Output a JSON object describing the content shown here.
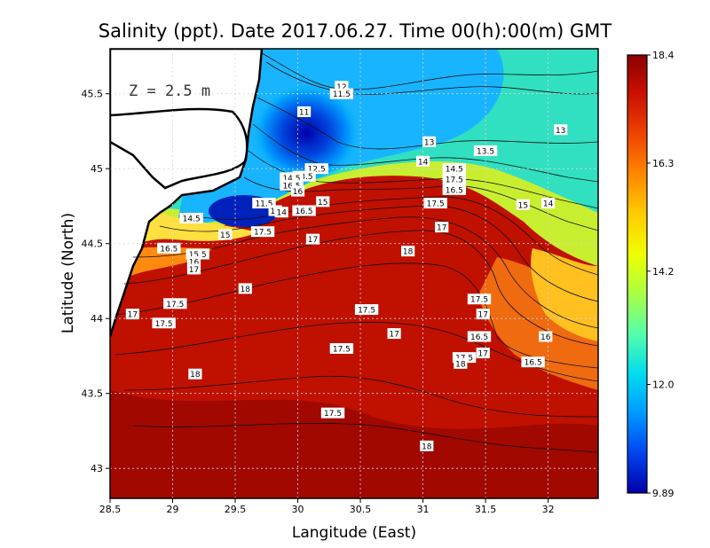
{
  "chart_data": {
    "type": "heatmap",
    "title": "Salinity (ppt). Date 2017.06.27. Time 00(h):00(m) GMT",
    "xlabel": "Langitude (East)",
    "ylabel": "Latitude (North)",
    "depth_label": "Z = 2.5 m",
    "xlim": [
      28.5,
      32.4
    ],
    "ylim": [
      42.8,
      45.8
    ],
    "x_ticks": [
      "28.5",
      "29",
      "29.5",
      "30",
      "30.5",
      "31",
      "31.5",
      "32"
    ],
    "x_tick_values": [
      28.5,
      29,
      29.5,
      30,
      30.5,
      31,
      31.5,
      32
    ],
    "y_ticks": [
      "43",
      "43.5",
      "44",
      "44.5",
      "45",
      "45.5"
    ],
    "y_tick_values": [
      43,
      43.5,
      44,
      44.5,
      45,
      45.5
    ],
    "grid": true,
    "colorbar": {
      "min": 9.89,
      "max": 18.4,
      "ticks": [
        "18.4",
        "16.3",
        "14.2",
        "12.0",
        "9.89"
      ],
      "tick_values": [
        18.4,
        16.3,
        14.2,
        12.0,
        9.89
      ],
      "colors": [
        "#8b0000",
        "#cc1100",
        "#ee4400",
        "#ff8800",
        "#ffcc00",
        "#eeff00",
        "#aaff44",
        "#55ffaa",
        "#00ddee",
        "#0099ff",
        "#0044ee",
        "#0000aa"
      ]
    },
    "contour_labels": [
      {
        "text": "12",
        "lon": 30.35,
        "lat": 45.55
      },
      {
        "text": "11.5",
        "lon": 30.35,
        "lat": 45.5
      },
      {
        "text": "11",
        "lon": 30.05,
        "lat": 45.38
      },
      {
        "text": "13",
        "lon": 31.05,
        "lat": 45.18
      },
      {
        "text": "13.5",
        "lon": 31.5,
        "lat": 45.12
      },
      {
        "text": "13",
        "lon": 32.1,
        "lat": 45.26
      },
      {
        "text": "14",
        "lon": 31.0,
        "lat": 45.05
      },
      {
        "text": "12.5",
        "lon": 30.15,
        "lat": 45.0
      },
      {
        "text": "13.5",
        "lon": 30.05,
        "lat": 44.95
      },
      {
        "text": "14.5",
        "lon": 29.95,
        "lat": 44.94
      },
      {
        "text": "16.5",
        "lon": 29.95,
        "lat": 44.89
      },
      {
        "text": "16",
        "lon": 30.0,
        "lat": 44.85
      },
      {
        "text": "14.5",
        "lon": 31.25,
        "lat": 45.0
      },
      {
        "text": "15",
        "lon": 30.2,
        "lat": 44.78
      },
      {
        "text": "17.5",
        "lon": 31.25,
        "lat": 44.93
      },
      {
        "text": "16.5",
        "lon": 31.25,
        "lat": 44.86
      },
      {
        "text": "17.5",
        "lon": 31.1,
        "lat": 44.77
      },
      {
        "text": "15",
        "lon": 31.8,
        "lat": 44.76
      },
      {
        "text": "14",
        "lon": 32.0,
        "lat": 44.77
      },
      {
        "text": "11.5",
        "lon": 29.73,
        "lat": 44.77
      },
      {
        "text": "13",
        "lon": 29.82,
        "lat": 44.72
      },
      {
        "text": "14",
        "lon": 29.87,
        "lat": 44.71
      },
      {
        "text": "16.5",
        "lon": 30.05,
        "lat": 44.72
      },
      {
        "text": "14.5",
        "lon": 29.15,
        "lat": 44.67
      },
      {
        "text": "17",
        "lon": 31.15,
        "lat": 44.61
      },
      {
        "text": "15",
        "lon": 29.42,
        "lat": 44.56
      },
      {
        "text": "17.5",
        "lon": 29.72,
        "lat": 44.58
      },
      {
        "text": "17",
        "lon": 30.12,
        "lat": 44.53
      },
      {
        "text": "18",
        "lon": 30.88,
        "lat": 44.45
      },
      {
        "text": "16.5",
        "lon": 28.97,
        "lat": 44.47
      },
      {
        "text": "15.5",
        "lon": 29.2,
        "lat": 44.43
      },
      {
        "text": "16",
        "lon": 29.17,
        "lat": 44.38
      },
      {
        "text": "17",
        "lon": 29.17,
        "lat": 44.33
      },
      {
        "text": "18",
        "lon": 29.58,
        "lat": 44.2
      },
      {
        "text": "17.5",
        "lon": 29.02,
        "lat": 44.1
      },
      {
        "text": "17",
        "lon": 28.68,
        "lat": 44.03
      },
      {
        "text": "17.5",
        "lon": 28.93,
        "lat": 43.97
      },
      {
        "text": "17.5",
        "lon": 30.55,
        "lat": 44.06
      },
      {
        "text": "17.5",
        "lon": 31.45,
        "lat": 44.13
      },
      {
        "text": "17",
        "lon": 31.48,
        "lat": 44.03
      },
      {
        "text": "17",
        "lon": 30.77,
        "lat": 43.9
      },
      {
        "text": "16.5",
        "lon": 31.45,
        "lat": 43.88
      },
      {
        "text": "16",
        "lon": 31.98,
        "lat": 43.88
      },
      {
        "text": "17.5",
        "lon": 30.35,
        "lat": 43.8
      },
      {
        "text": "17",
        "lon": 31.48,
        "lat": 43.77
      },
      {
        "text": "17.5",
        "lon": 31.33,
        "lat": 43.74
      },
      {
        "text": "18",
        "lon": 31.3,
        "lat": 43.7
      },
      {
        "text": "16.5",
        "lon": 31.88,
        "lat": 43.71
      },
      {
        "text": "18",
        "lon": 29.18,
        "lat": 43.63
      },
      {
        "text": "17.5",
        "lon": 30.28,
        "lat": 43.37
      },
      {
        "text": "18",
        "lon": 31.03,
        "lat": 43.15
      }
    ]
  }
}
